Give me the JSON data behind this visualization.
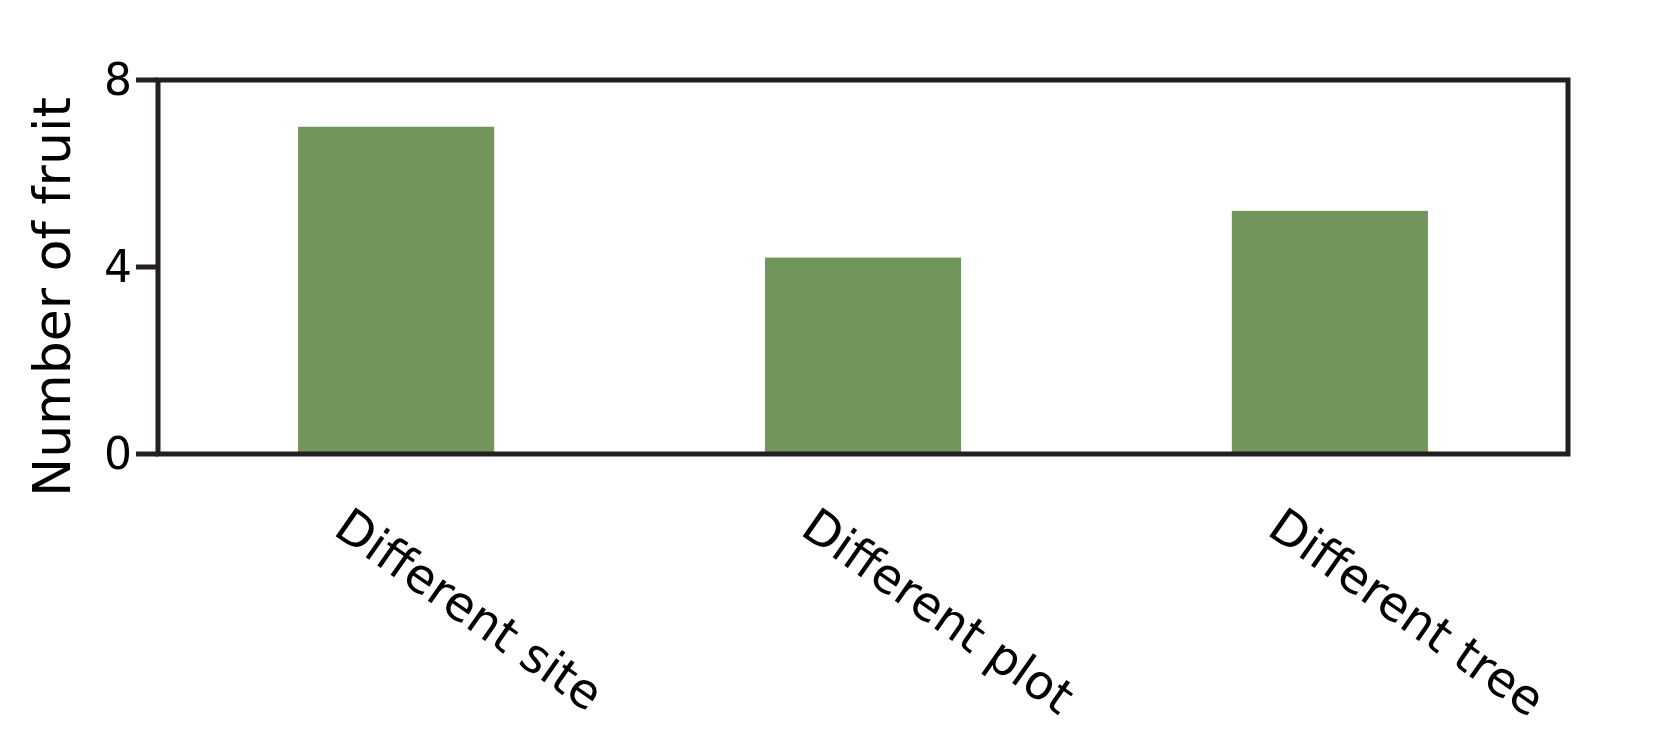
{
  "chart_data": {
    "type": "bar",
    "ylabel": "Number of fruit",
    "categories": [
      "Different site",
      "Different plot",
      "Different tree"
    ],
    "values": [
      7.0,
      4.2,
      5.2
    ],
    "color": "#71955a",
    "ylim": [
      0,
      8
    ],
    "yticks": [
      0,
      4,
      8
    ],
    "grid": false
  }
}
